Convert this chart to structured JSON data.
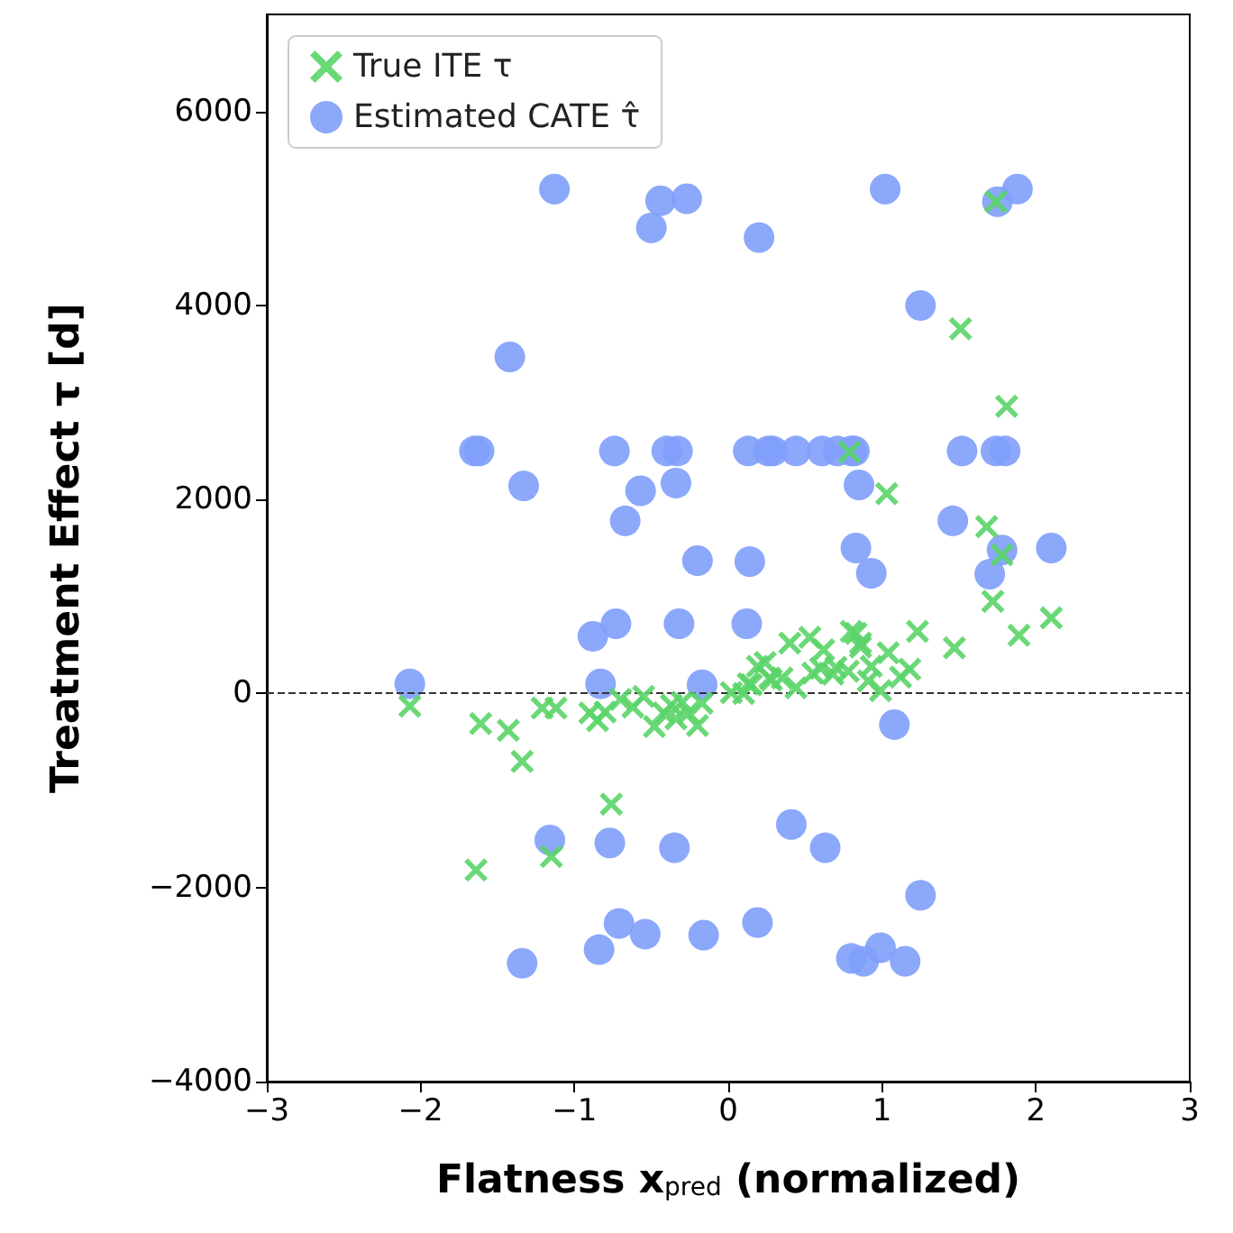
{
  "chart_data": {
    "type": "scatter",
    "xlabel": "Flatness x$_{pred}$ (normalized)",
    "ylabel": "Treatment Effect τ [d]",
    "xlim": [
      -3,
      3
    ],
    "xticks": [
      -3,
      -2,
      -1,
      0,
      1,
      2,
      3
    ],
    "ylim": [
      -4000,
      7000
    ],
    "yticks": [
      -4000,
      -2000,
      0,
      2000,
      4000,
      6000
    ],
    "grid": false,
    "legend": "top left",
    "ref_lines": [
      {
        "axis": "y",
        "value": 0,
        "color": "#333333",
        "line_style": "dashed"
      }
    ],
    "series": [
      {
        "name": "True ITE τ",
        "color": "#5ad468",
        "marker": "cross",
        "x": [
          -2.07,
          -1.64,
          -1.61,
          -1.43,
          -1.34,
          -1.15,
          -1.21,
          -1.12,
          -0.76,
          -0.9,
          -0.85,
          -0.8,
          -0.7,
          -0.62,
          -0.55,
          -0.48,
          -0.42,
          -0.37,
          -0.34,
          -0.3,
          -0.26,
          -0.2,
          -0.17,
          0.1,
          0.13,
          0.15,
          0.19,
          0.24,
          0.27,
          0.35,
          0.4,
          0.44,
          0.53,
          0.6,
          0.62,
          0.7,
          0.78,
          0.83,
          0.86,
          0.91,
          0.93,
          0.99,
          1.04,
          1.12,
          1.18,
          1.23,
          1.47,
          1.51,
          1.68,
          1.72,
          1.78,
          1.81,
          1.89,
          2.1,
          1.74,
          0.79,
          1.03,
          0.8,
          0.86,
          0.28,
          0.02,
          0.55,
          0.68
        ],
        "values": [
          -130,
          -1820,
          -310,
          -380,
          -700,
          -1680,
          -150,
          -150,
          -1140,
          -200,
          -280,
          -190,
          -60,
          -140,
          -30,
          -340,
          -200,
          -120,
          -260,
          -90,
          -200,
          -330,
          -100,
          0,
          100,
          90,
          280,
          320,
          160,
          160,
          520,
          60,
          580,
          260,
          450,
          270,
          230,
          620,
          480,
          130,
          280,
          30,
          420,
          170,
          250,
          640,
          470,
          3760,
          1720,
          950,
          1430,
          2960,
          600,
          780,
          5070,
          2490,
          2060,
          640,
          520,
          140,
          10,
          210,
          200
        ]
      },
      {
        "name": "Estimated CATE τ̂",
        "color": "#7f9ffb",
        "marker": "circle",
        "x": [
          -2.07,
          -1.65,
          -1.62,
          -1.42,
          -1.33,
          -1.13,
          -0.88,
          -0.83,
          -0.74,
          -0.73,
          -0.67,
          -0.57,
          -0.5,
          -0.44,
          -0.4,
          -0.33,
          -0.34,
          -0.32,
          -0.27,
          -0.2,
          -0.17,
          0.13,
          0.14,
          0.12,
          0.2,
          0.26,
          0.29,
          0.44,
          0.61,
          0.71,
          0.8,
          0.82,
          0.85,
          0.83,
          0.93,
          1.02,
          1.25,
          1.46,
          1.52,
          1.75,
          1.88,
          1.7,
          1.74,
          1.8,
          1.78,
          2.1,
          1.08,
          -1.16,
          -0.77,
          -0.35,
          0.41,
          0.63,
          -0.71,
          -0.84,
          -0.54,
          -0.16,
          0.19,
          1.25,
          -1.34,
          0.8,
          0.88,
          0.99,
          1.15
        ],
        "values": [
          100,
          2500,
          2500,
          3470,
          2140,
          5200,
          590,
          100,
          2500,
          720,
          1780,
          2090,
          4800,
          5080,
          2500,
          2500,
          2170,
          720,
          5100,
          1370,
          90,
          2500,
          1360,
          720,
          4700,
          2500,
          2500,
          2500,
          2500,
          2500,
          2500,
          2500,
          2150,
          1500,
          1240,
          5200,
          4000,
          1780,
          2500,
          5070,
          5200,
          1230,
          2500,
          2500,
          1480,
          1500,
          -320,
          -1510,
          -1540,
          -1590,
          -1350,
          -1590,
          -2370,
          -2640,
          -2480,
          -2490,
          -2360,
          -2080,
          -2780,
          -2730,
          -2760,
          -2620,
          -2760
        ]
      }
    ]
  }
}
